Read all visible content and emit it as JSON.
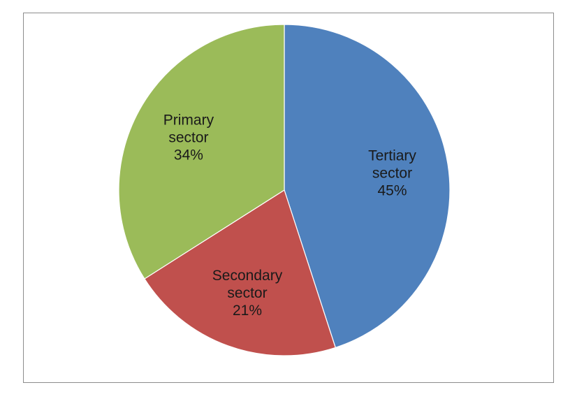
{
  "chart_data": {
    "type": "pie",
    "slices": [
      {
        "name": "Tertiary sector",
        "label_line1": "Tertiary",
        "label_line2": "sector",
        "value": 45,
        "value_label": "45%",
        "color": "#4f81bd"
      },
      {
        "name": "Secondary sector",
        "label_line1": "Secondary",
        "label_line2": "sector",
        "value": 21,
        "value_label": "21%",
        "color": "#c0504d"
      },
      {
        "name": "Primary sector",
        "label_line1": "Primary",
        "label_line2": "sector",
        "value": 34,
        "value_label": "34%",
        "color": "#9bbb59"
      }
    ],
    "start_angle_deg": 0,
    "direction": "clockwise",
    "legend": "none",
    "title": ""
  }
}
